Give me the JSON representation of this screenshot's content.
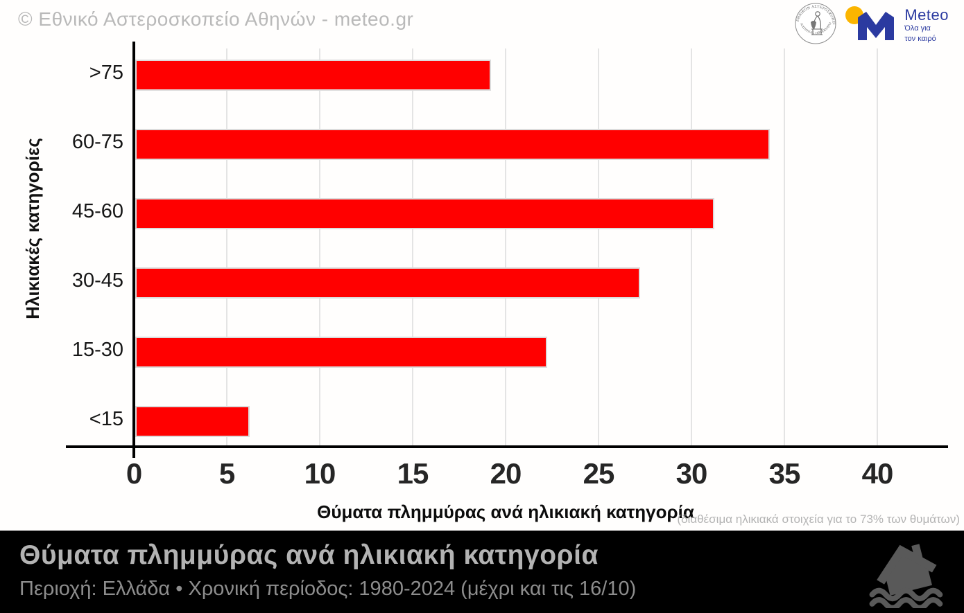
{
  "header": {
    "copyright": "© Εθνικό Αστεροσκοπείο Αθηνών - meteo.gr",
    "seal": {
      "line_top": "ΕΘΝΙΚΟΝ ΑΣΤΕΡΟΣΚΟΠΕΙΟΝ ΑΘΗΝΩΝ",
      "line_bottom": "NATIONAL OBSERVATORY OF ATHENS"
    },
    "meteo": {
      "brand": "Meteo",
      "tagline1": "Όλα για",
      "tagline2": "τον καιρό",
      "blue": "#2b3aa0",
      "yellow": "#fbb500"
    }
  },
  "chart_data": {
    "type": "bar",
    "orientation": "horizontal",
    "title": "Θύματα πλημμύρας ανά ηλικιακή κατηγορία",
    "categories": [
      ">75",
      "60-75",
      "45-60",
      "30-45",
      "15-30",
      "<15"
    ],
    "values": [
      19,
      34,
      31,
      27,
      22,
      6
    ],
    "xlabel": "Θύματα πλημμύρας ανά ηλικιακή κατηγορία",
    "ylabel": "Ηλικιακές κατηγορίες",
    "x_ticks": [
      0,
      5,
      10,
      15,
      20,
      25,
      30,
      35,
      40
    ],
    "xlim": [
      0,
      43.7
    ],
    "grid": true,
    "legend": false,
    "bar_color": "#ff0000",
    "bar_border_color": "#dcdcdc",
    "grid_color": "#e4e4e4",
    "note": "(διαθέσιμα ηλικιακά στοιχεία για το 73% των θυμάτων)"
  },
  "footer": {
    "title": "Θύματα πλημμύρας ανά ηλικιακή κατηγορία",
    "subtitle": "Περιοχή: Ελλάδα • Χρονική περίοδος: 1980-2024 (μέχρι και τις 16/10)",
    "background": "#000000",
    "icon": "flooded-house-icon"
  }
}
